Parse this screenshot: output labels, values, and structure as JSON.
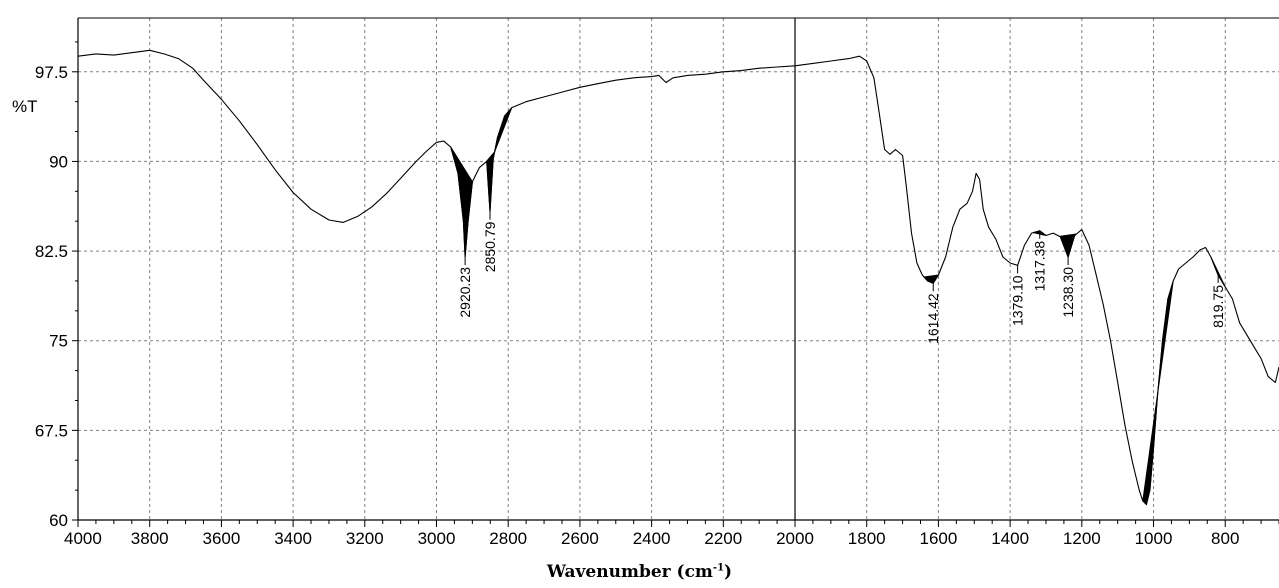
{
  "chart_data": {
    "type": "line",
    "title": "",
    "ylabel": "%T",
    "xlabel": {
      "main": "Wavenumber (cm",
      "sup": "-1",
      "close": ")"
    },
    "xlim": [
      4000,
      650
    ],
    "ylim": [
      60,
      102
    ],
    "x_ticks": [
      4000,
      3800,
      3600,
      3400,
      3200,
      3000,
      2800,
      2600,
      2400,
      2200,
      2000,
      1800,
      1600,
      1400,
      1200,
      1000,
      800
    ],
    "x_tick_labels": [
      "4000",
      "3800",
      "3600",
      "3400",
      "3200",
      "3000",
      "2800",
      "2600",
      "2400",
      "2200",
      "2000",
      "1800",
      "1600",
      "1400",
      "1200",
      "1000",
      "800"
    ],
    "y_ticks": [
      60,
      67.5,
      75,
      82.5,
      90,
      97.5
    ],
    "y_tick_labels": [
      "60",
      "67.5",
      "75",
      "82.5",
      "90",
      "97.5"
    ],
    "grid": true,
    "vertical_marker": 2000,
    "series": [
      {
        "points": [
          [
            4000,
            98.8
          ],
          [
            3950,
            99.0
          ],
          [
            3900,
            98.9
          ],
          [
            3850,
            99.1
          ],
          [
            3800,
            99.3
          ],
          [
            3760,
            99.0
          ],
          [
            3720,
            98.6
          ],
          [
            3680,
            97.8
          ],
          [
            3650,
            96.8
          ],
          [
            3600,
            95.2
          ],
          [
            3550,
            93.4
          ],
          [
            3500,
            91.4
          ],
          [
            3450,
            89.3
          ],
          [
            3400,
            87.4
          ],
          [
            3350,
            86.0
          ],
          [
            3300,
            85.1
          ],
          [
            3260,
            84.9
          ],
          [
            3220,
            85.4
          ],
          [
            3180,
            86.2
          ],
          [
            3140,
            87.3
          ],
          [
            3100,
            88.6
          ],
          [
            3060,
            89.9
          ],
          [
            3030,
            90.8
          ],
          [
            3000,
            91.6
          ],
          [
            2980,
            91.7
          ],
          [
            2960,
            91.2
          ],
          [
            2940,
            89.0
          ],
          [
            2925,
            85.0
          ],
          [
            2920.23,
            82.0
          ],
          [
            2912,
            85.0
          ],
          [
            2900,
            88.3
          ],
          [
            2880,
            89.5
          ],
          [
            2860,
            90.0
          ],
          [
            2850.79,
            85.8
          ],
          [
            2842,
            90.2
          ],
          [
            2830,
            92.0
          ],
          [
            2810,
            93.8
          ],
          [
            2790,
            94.5
          ],
          [
            2750,
            95.0
          ],
          [
            2700,
            95.4
          ],
          [
            2650,
            95.8
          ],
          [
            2600,
            96.2
          ],
          [
            2550,
            96.5
          ],
          [
            2500,
            96.8
          ],
          [
            2450,
            97.0
          ],
          [
            2400,
            97.1
          ],
          [
            2380,
            97.2
          ],
          [
            2360,
            96.6
          ],
          [
            2340,
            97.0
          ],
          [
            2300,
            97.2
          ],
          [
            2250,
            97.3
          ],
          [
            2200,
            97.5
          ],
          [
            2150,
            97.6
          ],
          [
            2100,
            97.8
          ],
          [
            2050,
            97.9
          ],
          [
            2000,
            98.0
          ],
          [
            1950,
            98.2
          ],
          [
            1900,
            98.4
          ],
          [
            1850,
            98.6
          ],
          [
            1820,
            98.8
          ],
          [
            1800,
            98.4
          ],
          [
            1780,
            97.0
          ],
          [
            1765,
            94.0
          ],
          [
            1750,
            91.0
          ],
          [
            1735,
            90.6
          ],
          [
            1720,
            91.0
          ],
          [
            1700,
            90.5
          ],
          [
            1690,
            88.0
          ],
          [
            1675,
            84.0
          ],
          [
            1660,
            81.5
          ],
          [
            1645,
            80.5
          ],
          [
            1630,
            80.0
          ],
          [
            1614.42,
            79.8
          ],
          [
            1600,
            80.5
          ],
          [
            1580,
            82.0
          ],
          [
            1560,
            84.5
          ],
          [
            1540,
            86.0
          ],
          [
            1520,
            86.5
          ],
          [
            1505,
            87.5
          ],
          [
            1495,
            89.0
          ],
          [
            1485,
            88.5
          ],
          [
            1475,
            86.0
          ],
          [
            1460,
            84.5
          ],
          [
            1440,
            83.5
          ],
          [
            1420,
            82.0
          ],
          [
            1400,
            81.5
          ],
          [
            1379.1,
            81.3
          ],
          [
            1360,
            83.0
          ],
          [
            1340,
            84.0
          ],
          [
            1317.38,
            84.2
          ],
          [
            1300,
            83.8
          ],
          [
            1280,
            84.0
          ],
          [
            1260,
            83.7
          ],
          [
            1238.3,
            82.0
          ],
          [
            1220,
            83.8
          ],
          [
            1200,
            84.3
          ],
          [
            1180,
            83.0
          ],
          [
            1160,
            80.5
          ],
          [
            1140,
            78.0
          ],
          [
            1120,
            75.0
          ],
          [
            1100,
            71.5
          ],
          [
            1080,
            68.0
          ],
          [
            1060,
            65.0
          ],
          [
            1040,
            62.5
          ],
          [
            1030,
            61.6
          ],
          [
            1020,
            61.3
          ],
          [
            1010,
            62.5
          ],
          [
            1000,
            66.0
          ],
          [
            990,
            70.0
          ],
          [
            975,
            75.0
          ],
          [
            960,
            78.5
          ],
          [
            945,
            80.0
          ],
          [
            930,
            81.0
          ],
          [
            910,
            81.5
          ],
          [
            890,
            82.0
          ],
          [
            870,
            82.6
          ],
          [
            855,
            82.8
          ],
          [
            840,
            82.0
          ],
          [
            819.75,
            80.5
          ],
          [
            800,
            79.5
          ],
          [
            780,
            78.5
          ],
          [
            760,
            76.5
          ],
          [
            740,
            75.5
          ],
          [
            720,
            74.5
          ],
          [
            700,
            73.5
          ],
          [
            680,
            72.0
          ],
          [
            660,
            71.5
          ],
          [
            650,
            72.8
          ]
        ]
      }
    ],
    "filled_peaks": [
      {
        "left": 2960,
        "right": 2900
      },
      {
        "left": 2862,
        "right": 2838
      },
      {
        "left": 2838,
        "right": 2790
      },
      {
        "left": 1640,
        "right": 1600
      },
      {
        "left": 1335,
        "right": 1300
      },
      {
        "left": 1262,
        "right": 1215
      },
      {
        "left": 1030,
        "right": 945
      },
      {
        "left": 840,
        "right": 800
      }
    ],
    "peak_labels": [
      {
        "x": 2920.23,
        "label": "2920.23",
        "y": 82.0
      },
      {
        "x": 2850.79,
        "label": "2850.79",
        "y": 85.8
      },
      {
        "x": 1614.42,
        "label": "1614.42",
        "y": 79.8
      },
      {
        "x": 1379.1,
        "label": "1379.10",
        "y": 81.3
      },
      {
        "x": 1317.38,
        "label": "1317.38",
        "y": 84.2
      },
      {
        "x": 1238.3,
        "label": "1238.30",
        "y": 82.0
      },
      {
        "x": 819.75,
        "label": "819.75",
        "y": 80.5
      }
    ],
    "colors": {
      "line": "#000000",
      "grid": "#808080",
      "axis": "#000000",
      "background": "#ffffff"
    }
  }
}
